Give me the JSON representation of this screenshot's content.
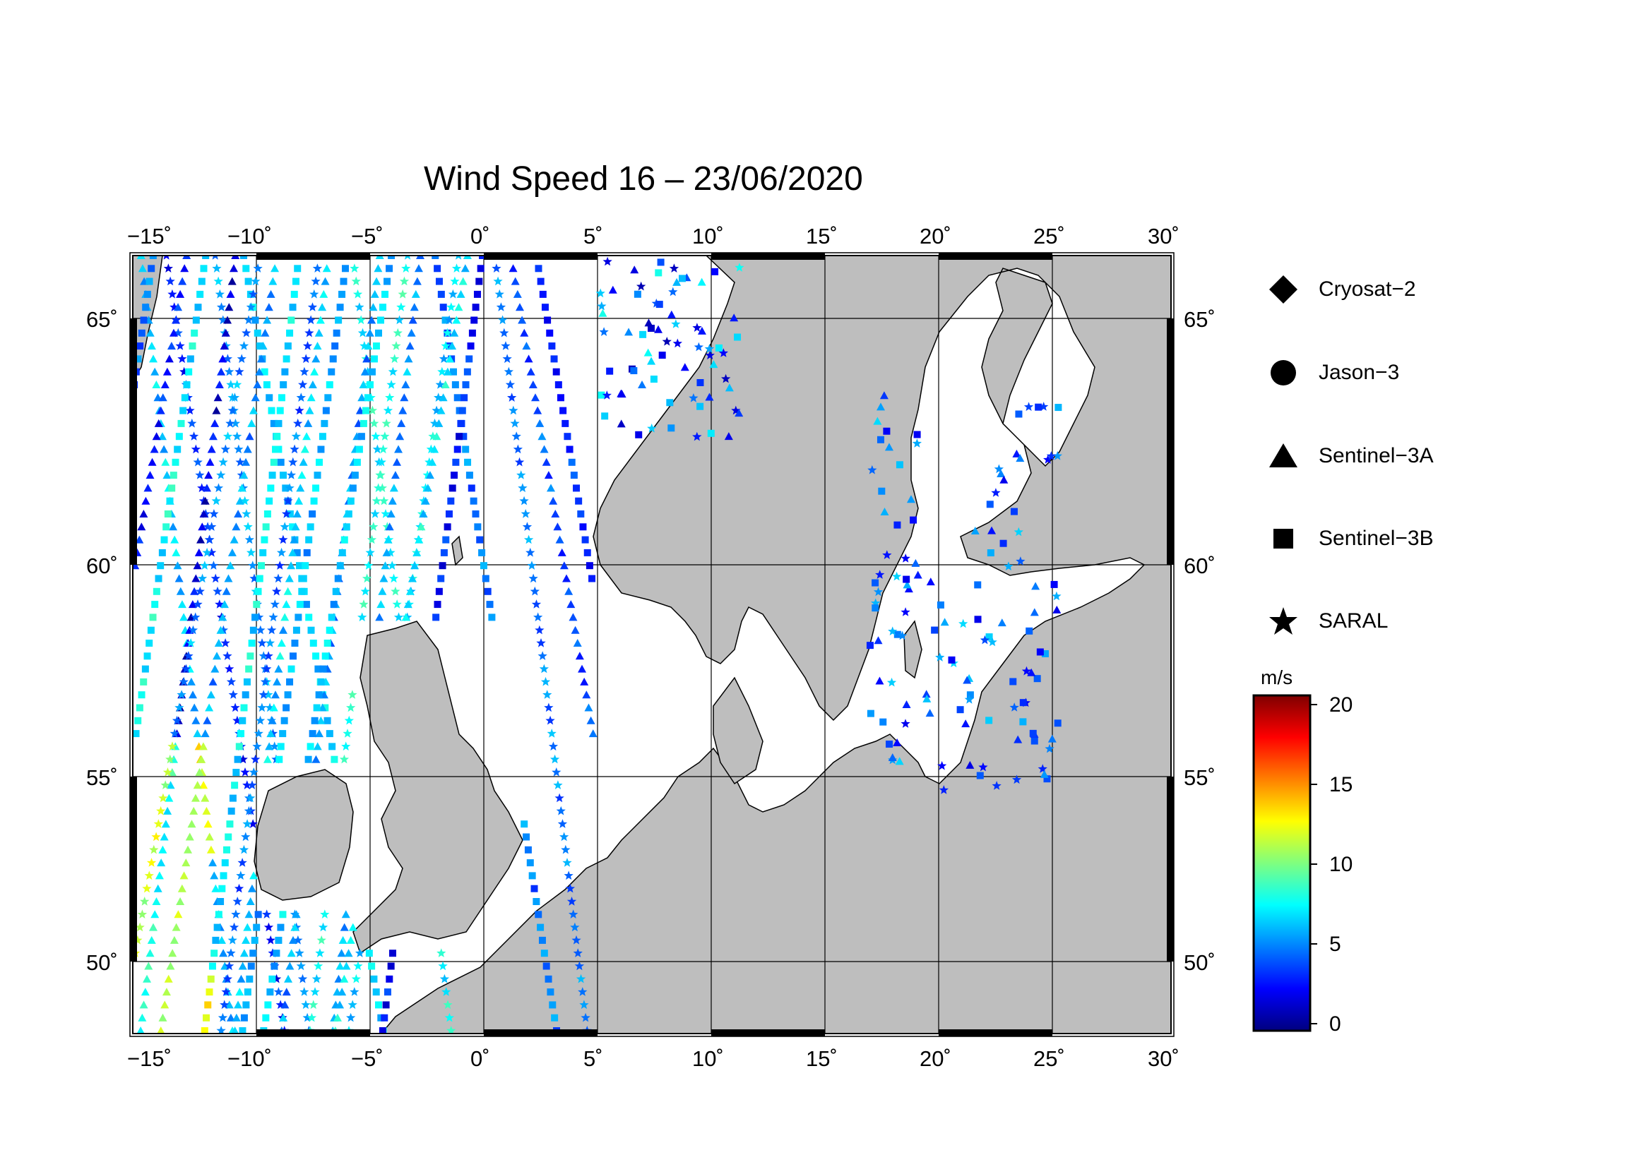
{
  "title": "Wind Speed 16 – 23/06/2020",
  "lon_ticks": [
    "−15˚",
    "−10˚",
    "−5˚",
    "0˚",
    "5˚",
    "10˚",
    "15˚",
    "20˚",
    "25˚",
    "30˚"
  ],
  "lat_ticks": [
    "65˚",
    "60˚",
    "55˚",
    "50˚"
  ],
  "legend": [
    {
      "label": "Cryosat−2",
      "icon": "diamond-icon"
    },
    {
      "label": "Jason−3",
      "icon": "circle-icon"
    },
    {
      "label": "Sentinel−3A",
      "icon": "triangle-icon"
    },
    {
      "label": "Sentinel−3B",
      "icon": "square-icon"
    },
    {
      "label": "SARAL",
      "icon": "star-icon"
    }
  ],
  "colorbar": {
    "unit": "m/s",
    "min": 0,
    "max": 20,
    "ticks": [
      "20",
      "15",
      "10",
      "5",
      "0"
    ],
    "colormap": "jet"
  },
  "map_extent": {
    "lon": [
      -15,
      30
    ],
    "lat": [
      48.5,
      66.5
    ]
  },
  "colors": {
    "land": "#bebebe",
    "sea": "#ffffff",
    "frame": "#000000"
  }
}
